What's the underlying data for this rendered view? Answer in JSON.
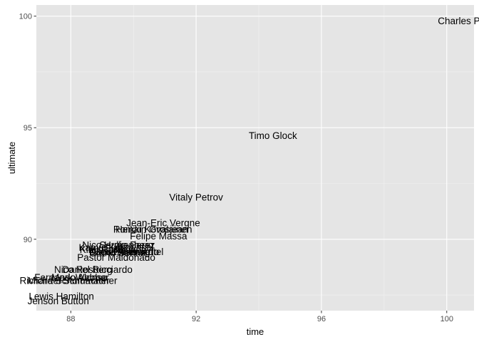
{
  "chart_data": {
    "type": "scatter",
    "xlabel": "time",
    "ylabel": "ultimate",
    "xlim": [
      86.9,
      100.87
    ],
    "ylim": [
      86.8,
      100.5
    ],
    "x_ticks": [
      88,
      92,
      96,
      100
    ],
    "y_ticks": [
      90,
      95,
      100
    ],
    "x_minor": [
      90,
      94,
      98
    ],
    "y_minor": [
      87.5,
      92.5,
      97.5
    ],
    "grid": true,
    "legend": "none",
    "background_color": "#e5e5e5",
    "points": [
      {
        "label": "Charles Pic",
        "x": 100.5,
        "y": 99.8
      },
      {
        "label": "Timo Glock",
        "x": 94.45,
        "y": 94.65
      },
      {
        "label": "Vitaly Petrov",
        "x": 92.0,
        "y": 91.9
      },
      {
        "label": "Jean-Eric Vergne",
        "x": 90.95,
        "y": 90.75
      },
      {
        "label": "Romain Grosjean",
        "x": 90.55,
        "y": 90.45
      },
      {
        "label": "Heikki Kovalainen",
        "x": 90.65,
        "y": 90.45
      },
      {
        "label": "Felipe Massa",
        "x": 90.8,
        "y": 90.15
      },
      {
        "label": "Nico Hulkenberg",
        "x": 89.5,
        "y": 89.75
      },
      {
        "label": "Sergio Perez",
        "x": 89.8,
        "y": 89.75
      },
      {
        "label": "Kamui Kobayashi",
        "x": 89.45,
        "y": 89.65
      },
      {
        "label": "Kimi Räikkönen",
        "x": 89.35,
        "y": 89.55
      },
      {
        "label": "Nico Rosberg",
        "x": 89.6,
        "y": 89.45
      },
      {
        "label": "Daniel Ricciardo",
        "x": 89.7,
        "y": 89.45
      },
      {
        "label": "Sebastian Vettel",
        "x": 89.85,
        "y": 89.45
      },
      {
        "label": "Bruno Senna",
        "x": 89.5,
        "y": 89.4
      },
      {
        "label": "Pastor Maldonado",
        "x": 89.45,
        "y": 89.2
      },
      {
        "label": "Nico Rosberg",
        "x": 88.4,
        "y": 88.65
      },
      {
        "label": "Daniel Ricciardo",
        "x": 88.85,
        "y": 88.65
      },
      {
        "label": "Fernando Alonso",
        "x": 88.0,
        "y": 88.3
      },
      {
        "label": "Mark Webber",
        "x": 88.3,
        "y": 88.3
      },
      {
        "label": "Richard Schumacher",
        "x": 87.8,
        "y": 88.15
      },
      {
        "label": "Michael Schumacher",
        "x": 88.05,
        "y": 88.15
      },
      {
        "label": "Lewis Hamilton",
        "x": 87.7,
        "y": 87.45
      },
      {
        "label": "Jenson Button",
        "x": 87.6,
        "y": 87.25
      }
    ]
  }
}
